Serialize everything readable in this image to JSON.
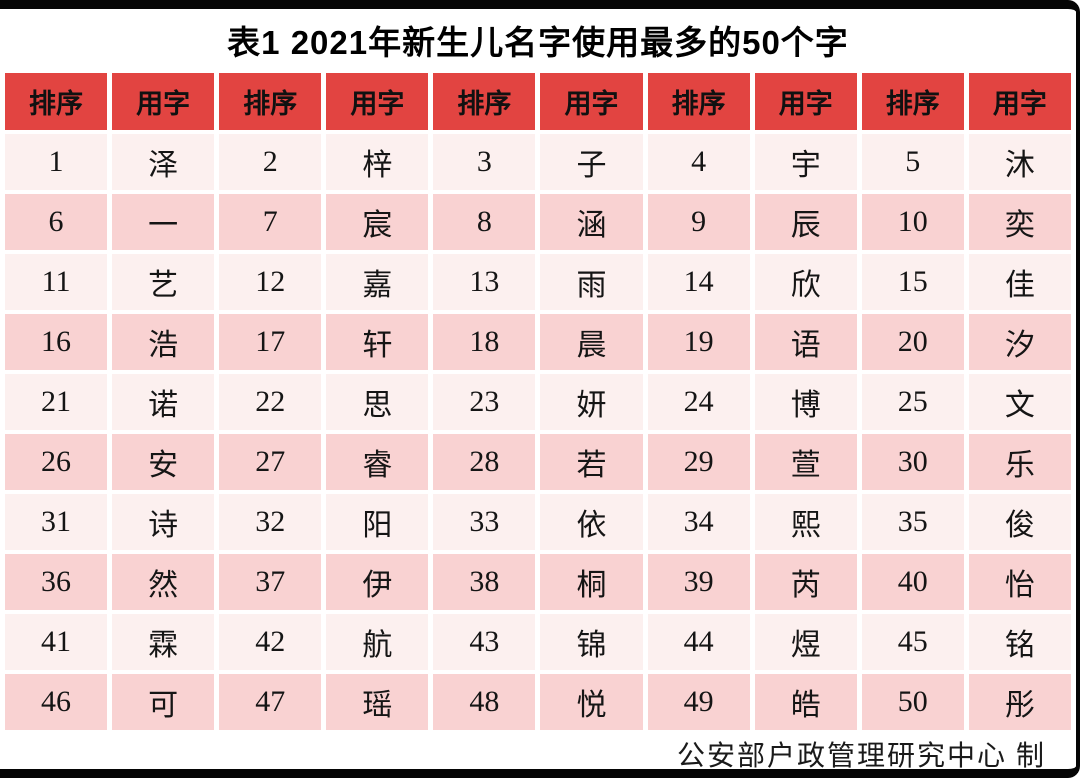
{
  "page": {
    "title": "表1 2021年新生儿名字使用最多的50个字",
    "footer": "公安部户政管理研究中心 制"
  },
  "colors": {
    "header_bg": "#E24441",
    "header_text": "#111111",
    "row_light": "#FCF0EF",
    "row_pink": "#F9D2D2",
    "frame_border": "#050505",
    "title_text": "#000000"
  },
  "table": {
    "header_labels": [
      "排序",
      "用字",
      "排序",
      "用字",
      "排序",
      "用字",
      "排序",
      "用字",
      "排序",
      "用字"
    ],
    "rows": [
      [
        "1",
        "泽",
        "2",
        "梓",
        "3",
        "子",
        "4",
        "宇",
        "5",
        "沐"
      ],
      [
        "6",
        "一",
        "7",
        "宸",
        "8",
        "涵",
        "9",
        "辰",
        "10",
        "奕"
      ],
      [
        "11",
        "艺",
        "12",
        "嘉",
        "13",
        "雨",
        "14",
        "欣",
        "15",
        "佳"
      ],
      [
        "16",
        "浩",
        "17",
        "轩",
        "18",
        "晨",
        "19",
        "语",
        "20",
        "汐"
      ],
      [
        "21",
        "诺",
        "22",
        "思",
        "23",
        "妍",
        "24",
        "博",
        "25",
        "文"
      ],
      [
        "26",
        "安",
        "27",
        "睿",
        "28",
        "若",
        "29",
        "萱",
        "30",
        "乐"
      ],
      [
        "31",
        "诗",
        "32",
        "阳",
        "33",
        "依",
        "34",
        "熙",
        "35",
        "俊"
      ],
      [
        "36",
        "然",
        "37",
        "伊",
        "38",
        "桐",
        "39",
        "芮",
        "40",
        "怡"
      ],
      [
        "41",
        "霖",
        "42",
        "航",
        "43",
        "锦",
        "44",
        "煜",
        "45",
        "铭"
      ],
      [
        "46",
        "可",
        "47",
        "瑶",
        "48",
        "悦",
        "49",
        "皓",
        "50",
        "彤"
      ]
    ]
  }
}
